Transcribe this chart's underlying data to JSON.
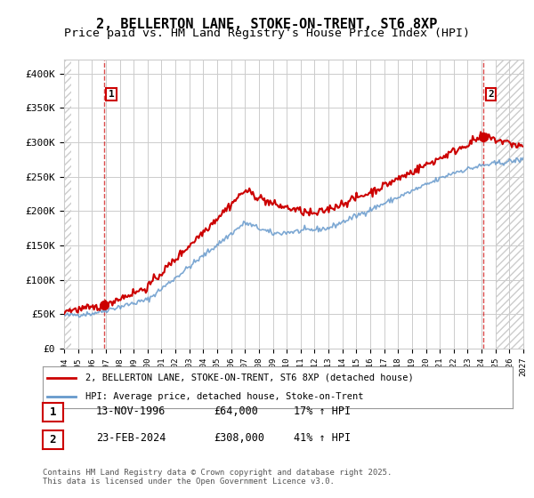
{
  "title": "2, BELLERTON LANE, STOKE-ON-TRENT, ST6 8XP",
  "subtitle": "Price paid vs. HM Land Registry's House Price Index (HPI)",
  "ylim": [
    0,
    420000
  ],
  "yticks": [
    0,
    50000,
    100000,
    150000,
    200000,
    250000,
    300000,
    350000,
    400000
  ],
  "ytick_labels": [
    "£0",
    "£50K",
    "£100K",
    "£150K",
    "£200K",
    "£250K",
    "£300K",
    "£350K",
    "£400K"
  ],
  "xlim_start": 1994,
  "xlim_end": 2027,
  "sale1_date": 1996.87,
  "sale1_price": 64000,
  "sale1_label": "1",
  "sale2_date": 2024.15,
  "sale2_price": 308000,
  "sale2_label": "2",
  "red_line_color": "#cc0000",
  "blue_line_color": "#6699cc",
  "hatch_color": "#dddddd",
  "grid_color": "#cccccc",
  "legend_red_label": "2, BELLERTON LANE, STOKE-ON-TRENT, ST6 8XP (detached house)",
  "legend_blue_label": "HPI: Average price, detached house, Stoke-on-Trent",
  "table_row1": [
    "1",
    "13-NOV-1996",
    "£64,000",
    "17% ↑ HPI"
  ],
  "table_row2": [
    "2",
    "23-FEB-2024",
    "£308,000",
    "41% ↑ HPI"
  ],
  "footer": "Contains HM Land Registry data © Crown copyright and database right 2025.\nThis data is licensed under the Open Government Licence v3.0.",
  "bg_color": "#ffffff",
  "title_fontsize": 11,
  "subtitle_fontsize": 9.5
}
